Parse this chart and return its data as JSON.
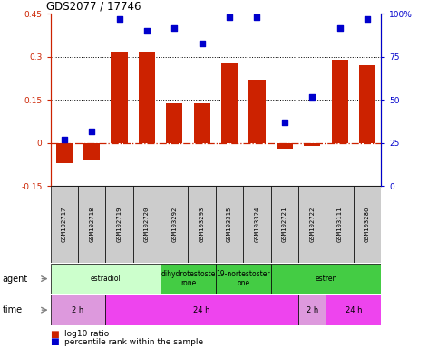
{
  "title": "GDS2077 / 17746",
  "samples": [
    "GSM102717",
    "GSM102718",
    "GSM102719",
    "GSM102720",
    "GSM103292",
    "GSM103293",
    "GSM103315",
    "GSM103324",
    "GSM102721",
    "GSM102722",
    "GSM103111",
    "GSM103286"
  ],
  "log10_ratio": [
    -0.07,
    -0.06,
    0.32,
    0.32,
    0.14,
    0.14,
    0.28,
    0.22,
    -0.02,
    -0.01,
    0.29,
    0.27
  ],
  "percentile": [
    27,
    32,
    97,
    90,
    92,
    83,
    98,
    98,
    37,
    52,
    92,
    97
  ],
  "ylim_left": [
    -0.15,
    0.45
  ],
  "ylim_right": [
    0,
    100
  ],
  "yticks_left": [
    -0.15,
    0,
    0.15,
    0.3,
    0.45
  ],
  "yticks_right": [
    0,
    25,
    50,
    75,
    100
  ],
  "hlines": [
    0.15,
    0.3
  ],
  "bar_color": "#cc2200",
  "dot_color": "#0000cc",
  "zero_line_color": "#cc2200",
  "agent_groups": [
    {
      "label": "estradiol",
      "start": 0,
      "end": 4,
      "color": "#ccffcc"
    },
    {
      "label": "dihydrotestoste\nrone",
      "start": 4,
      "end": 6,
      "color": "#44cc44"
    },
    {
      "label": "19-nortestoster\none",
      "start": 6,
      "end": 8,
      "color": "#44cc44"
    },
    {
      "label": "estren",
      "start": 8,
      "end": 12,
      "color": "#44cc44"
    }
  ],
  "time_groups": [
    {
      "label": "2 h",
      "start": 0,
      "end": 2,
      "color": "#dd99dd"
    },
    {
      "label": "24 h",
      "start": 2,
      "end": 9,
      "color": "#ee44ee"
    },
    {
      "label": "2 h",
      "start": 9,
      "end": 10,
      "color": "#dd99dd"
    },
    {
      "label": "24 h",
      "start": 10,
      "end": 12,
      "color": "#ee44ee"
    }
  ],
  "legend_bar_color": "#cc2200",
  "legend_dot_color": "#0000cc",
  "background_color": "#ffffff"
}
